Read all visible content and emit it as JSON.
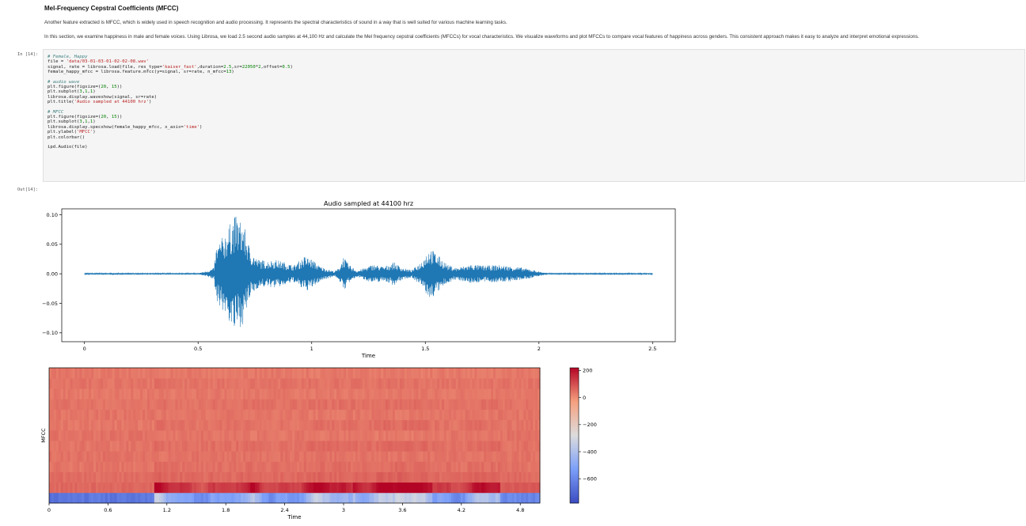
{
  "markdown": {
    "heading": "Mel-Frequency Cepstral Coefficients (MFCC)",
    "para1": "Another feature extracted is MFCC, which is widely used in speech recognition and audio processing. It represents the spectral characteristics of sound in a way that is well suited for various machine learning tasks.",
    "para2": "In this section, we examine happiness in male and female voices. Using Librosa, we load 2.5 second audio samples at 44,100 Hz and calculate the Mel frequency cepstral coefficients (MFCCs) for vocal characteristics. We visualize waveforms and plot MFCCs to compare vocal features of happiness across genders. This consistent approach makes it easy to analyze and interpret emotional expressions."
  },
  "cell": {
    "in_prompt": "In [14]:",
    "out_prompt": "Out[14]:",
    "code_lines": [
      "# Female, Happy",
      "file = 'data/03-01-03-01-02-02-08.wav'",
      "signal, rate = librosa.load(file, res_type='kaiser_fast',duration=2.5,sr=22050*2,offset=0.5)",
      "female_happy_mfcc = librosa.feature.mfcc(y=signal, sr=rate, n_mfcc=13)",
      "",
      "# audio wave",
      "plt.figure(figsize=(20, 15))",
      "plt.subplot(3,1,1)",
      "librosa.display.waveshow(signal, sr=rate)",
      "plt.title('Audio sampled at 44100 hrz')",
      "",
      "# MFCC",
      "plt.figure(figsize=(20, 15))",
      "plt.subplot(3,1,1)",
      "librosa.display.specshow(female_happy_mfcc, x_axis='time')",
      "plt.ylabel('MFCC')",
      "plt.colorbar()",
      "",
      "ipd.Audio(file)"
    ]
  },
  "chart_data": [
    {
      "type": "line",
      "title": "Audio sampled at 44100 hrz",
      "xlabel": "Time",
      "ylabel": "",
      "xlim": [
        -0.1,
        2.6
      ],
      "ylim": [
        -0.115,
        0.11
      ],
      "x_ticks": [
        0,
        0.5,
        1,
        1.5,
        2,
        2.5
      ],
      "x_tick_labels": [
        "0",
        "0.5",
        "1",
        "1.5",
        "2",
        "2.5"
      ],
      "y_ticks": [
        0.1,
        0.05,
        0.0,
        -0.05,
        -0.1
      ],
      "y_tick_labels": [
        "0.10",
        "0.05",
        "0.00",
        "−0.05",
        "−0.10"
      ],
      "color": "#1f77b4",
      "envelope": [
        {
          "t": 0.0,
          "a": 0.001
        },
        {
          "t": 0.5,
          "a": 0.001
        },
        {
          "t": 0.54,
          "a": 0.005
        },
        {
          "t": 0.57,
          "a": 0.01
        },
        {
          "t": 0.58,
          "a": 0.045
        },
        {
          "t": 0.62,
          "a": 0.07
        },
        {
          "t": 0.66,
          "a": 0.1
        },
        {
          "t": 0.7,
          "a": 0.085
        },
        {
          "t": 0.73,
          "a": 0.04
        },
        {
          "t": 0.76,
          "a": 0.025
        },
        {
          "t": 0.8,
          "a": 0.022
        },
        {
          "t": 0.84,
          "a": 0.024
        },
        {
          "t": 0.88,
          "a": 0.02
        },
        {
          "t": 0.92,
          "a": 0.014
        },
        {
          "t": 0.97,
          "a": 0.03
        },
        {
          "t": 1.0,
          "a": 0.025
        },
        {
          "t": 1.04,
          "a": 0.012
        },
        {
          "t": 1.1,
          "a": 0.004
        },
        {
          "t": 1.12,
          "a": 0.01
        },
        {
          "t": 1.14,
          "a": 0.03
        },
        {
          "t": 1.16,
          "a": 0.017
        },
        {
          "t": 1.2,
          "a": 0.005
        },
        {
          "t": 1.27,
          "a": 0.016
        },
        {
          "t": 1.32,
          "a": 0.012
        },
        {
          "t": 1.36,
          "a": 0.02
        },
        {
          "t": 1.4,
          "a": 0.01
        },
        {
          "t": 1.44,
          "a": 0.006
        },
        {
          "t": 1.48,
          "a": 0.02
        },
        {
          "t": 1.52,
          "a": 0.045
        },
        {
          "t": 1.56,
          "a": 0.03
        },
        {
          "t": 1.6,
          "a": 0.015
        },
        {
          "t": 1.64,
          "a": 0.01
        },
        {
          "t": 1.7,
          "a": 0.016
        },
        {
          "t": 1.76,
          "a": 0.014
        },
        {
          "t": 1.82,
          "a": 0.015
        },
        {
          "t": 1.9,
          "a": 0.012
        },
        {
          "t": 1.96,
          "a": 0.008
        },
        {
          "t": 2.0,
          "a": 0.004
        },
        {
          "t": 2.04,
          "a": 0.001
        },
        {
          "t": 2.5,
          "a": 0.001
        }
      ]
    },
    {
      "type": "heatmap",
      "xlabel": "Time",
      "ylabel": "MFCC",
      "xlim": [
        0,
        5.0
      ],
      "x_ticks": [
        0,
        0.6,
        1.2,
        1.8,
        2.4,
        3,
        3.6,
        4.2,
        4.8
      ],
      "x_tick_labels": [
        "0",
        "0.6",
        "1.2",
        "1.8",
        "2.4",
        "3",
        "3.6",
        "4.2",
        "4.8"
      ],
      "n_coefficients": 13,
      "colormap": "coolwarm",
      "colorbar": {
        "range": [
          -780,
          220
        ],
        "ticks": [
          200,
          0,
          -200,
          -400,
          -600
        ],
        "tick_labels": [
          "200",
          "0",
          "−200",
          "−400",
          "−600"
        ]
      },
      "row_levels": [
        {
          "coefficient": 0,
          "quiet": -650,
          "speech": -330
        },
        {
          "coefficient": 1,
          "quiet": 60,
          "speech": 200
        },
        {
          "coefficient": 2,
          "quiet": 50,
          "speech": 70
        },
        {
          "coefficient": 3,
          "quiet": 40,
          "speech": 55
        },
        {
          "coefficient": 4,
          "quiet": 45,
          "speech": 40
        },
        {
          "coefficient": 5,
          "quiet": 40,
          "speech": 60
        },
        {
          "coefficient": 6,
          "quiet": 45,
          "speech": 30
        },
        {
          "coefficient": 7,
          "quiet": 35,
          "speech": 55
        },
        {
          "coefficient": 8,
          "quiet": 40,
          "speech": 35
        },
        {
          "coefficient": 9,
          "quiet": 40,
          "speech": 50
        },
        {
          "coefficient": 10,
          "quiet": 35,
          "speech": 35
        },
        {
          "coefficient": 11,
          "quiet": 40,
          "speech": 45
        },
        {
          "coefficient": 12,
          "quiet": 35,
          "speech": 30
        }
      ]
    }
  ]
}
